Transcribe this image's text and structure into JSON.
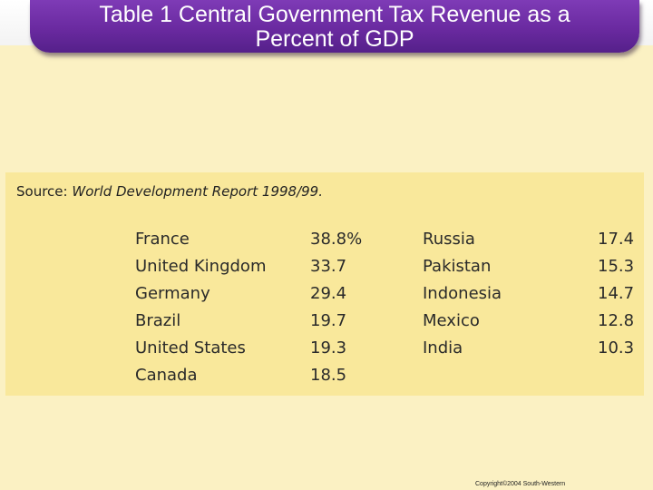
{
  "slide": {
    "title_line1": "Table 1 Central Government Tax Revenue as a",
    "title_line2": "Percent of GDP",
    "copyright": "Copyright©2004  South-Western"
  },
  "table": {
    "source_label": "Source:",
    "source_text": "World Development Report 1998/99.",
    "left": [
      {
        "country": "France",
        "value": "38.8%"
      },
      {
        "country": "United Kingdom",
        "value": "33.7"
      },
      {
        "country": "Germany",
        "value": "29.4"
      },
      {
        "country": "Brazil",
        "value": "19.7"
      },
      {
        "country": "United States",
        "value": "19.3"
      },
      {
        "country": "Canada",
        "value": "18.5"
      }
    ],
    "right": [
      {
        "country": "Russia",
        "value": "17.4"
      },
      {
        "country": "Pakistan",
        "value": "15.3"
      },
      {
        "country": "Indonesia",
        "value": "14.7"
      },
      {
        "country": "Mexico",
        "value": "12.8"
      },
      {
        "country": "India",
        "value": "10.3"
      }
    ]
  }
}
